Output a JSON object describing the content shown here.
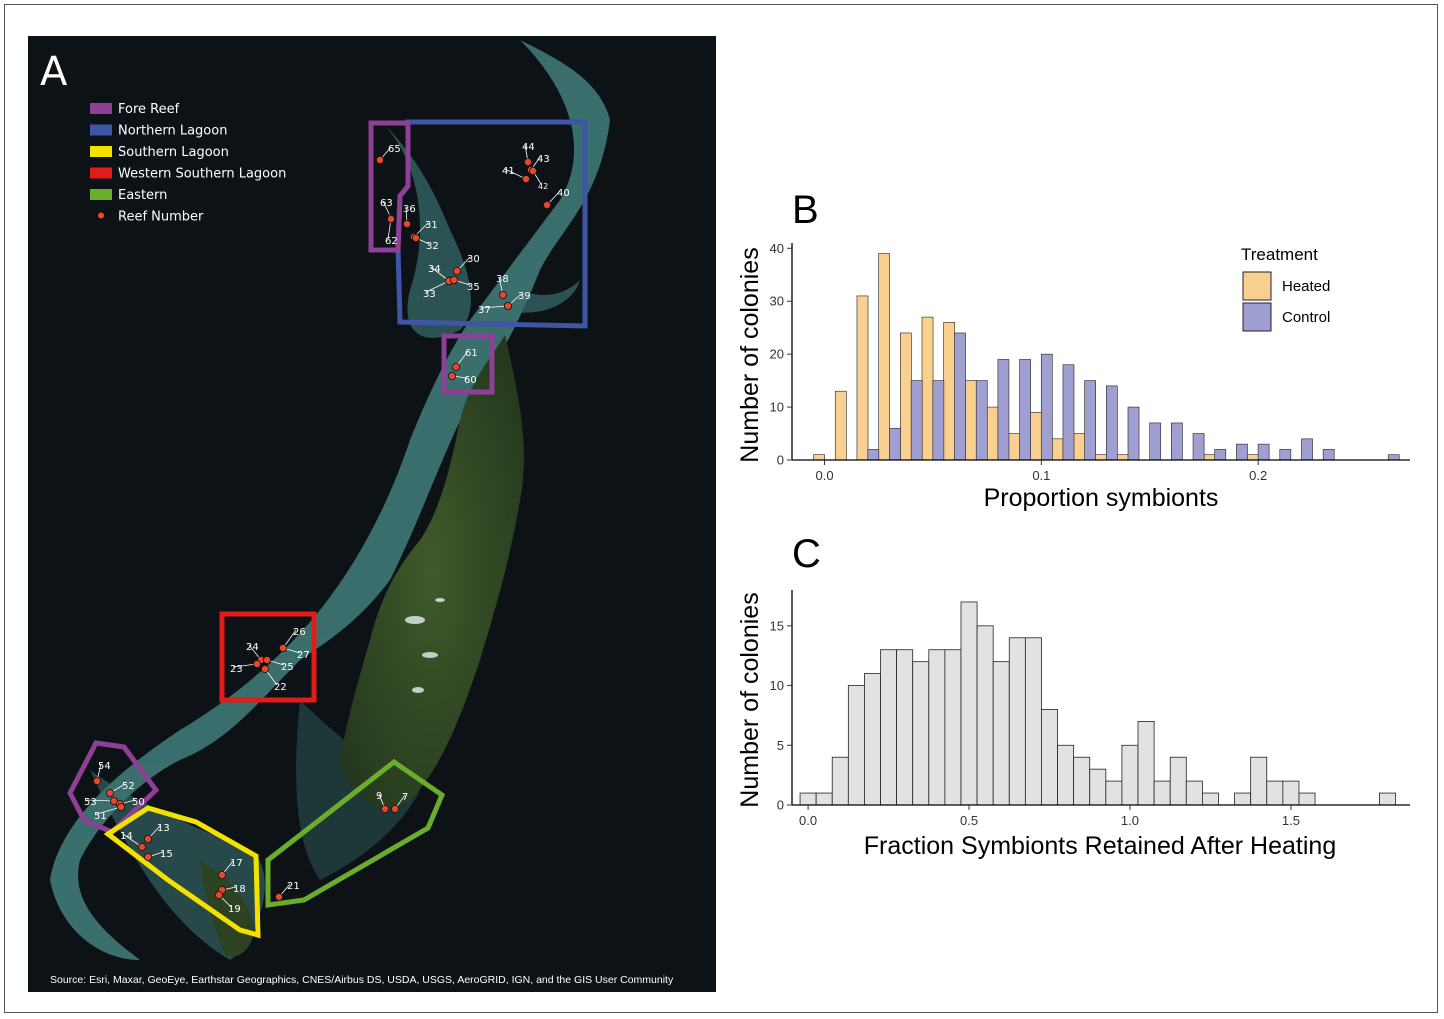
{
  "panel_a": {
    "letter": "A",
    "legend": [
      {
        "label": "Fore Reef",
        "color": "#8e3f96"
      },
      {
        "label": "Northern Lagoon",
        "color": "#3f55a5"
      },
      {
        "label": "Southern Lagoon",
        "color": "#f3e100"
      },
      {
        "label": "Western Southern Lagoon",
        "color": "#e21b1b"
      },
      {
        "label": "Eastern",
        "color": "#6aad2c"
      },
      {
        "label": "Reef Number",
        "color": "#e8472b"
      }
    ],
    "reefs": [
      {
        "label": "65"
      },
      {
        "label": "63"
      },
      {
        "label": "62"
      },
      {
        "label": "36"
      },
      {
        "label": "31"
      },
      {
        "label": "32"
      },
      {
        "label": "44"
      },
      {
        "label": "43"
      },
      {
        "label": "41"
      },
      {
        "label": "42"
      },
      {
        "label": "40"
      },
      {
        "label": "30"
      },
      {
        "label": "34"
      },
      {
        "label": "33"
      },
      {
        "label": "35"
      },
      {
        "label": "38"
      },
      {
        "label": "37"
      },
      {
        "label": "39"
      },
      {
        "label": "61"
      },
      {
        "label": "60"
      },
      {
        "label": "26"
      },
      {
        "label": "27"
      },
      {
        "label": "24"
      },
      {
        "label": "23"
      },
      {
        "label": "25"
      },
      {
        "label": "22"
      },
      {
        "label": "54"
      },
      {
        "label": "52"
      },
      {
        "label": "53"
      },
      {
        "label": "50"
      },
      {
        "label": "51"
      },
      {
        "label": "13"
      },
      {
        "label": "14"
      },
      {
        "label": "15"
      },
      {
        "label": "17"
      },
      {
        "label": "18"
      },
      {
        "label": "19"
      },
      {
        "label": "21"
      },
      {
        "label": "9"
      },
      {
        "label": "7"
      }
    ],
    "source": "Source: Esri, Maxar, GeoEye, Earthstar Geographics, CNES/Airbus DS, USDA, USGS, AeroGRID, IGN, and the GIS User Community"
  },
  "panel_b": {
    "letter": "B",
    "legend_title": "Treatment",
    "colors": {
      "Heated": "#f9d08f",
      "Control": "#9f9fd1"
    }
  },
  "panel_c": {
    "letter": "C",
    "color": "#e2e2e2"
  },
  "chart_data": [
    {
      "type": "bar",
      "xlabel": "Proportion symbionts",
      "ylabel": "Number of colonies",
      "xlim": [
        -0.015,
        0.27
      ],
      "ylim": [
        0,
        41
      ],
      "xticks": [
        "0.0",
        "0.1",
        "0.2"
      ],
      "yticks": [
        "0",
        "10",
        "20",
        "30",
        "40"
      ],
      "legend_position": "top-right",
      "grid": false,
      "bin_width": 0.01,
      "series": [
        {
          "name": "Heated",
          "x": [
            -0.0025,
            0.0075,
            0.0175,
            0.0275,
            0.0375,
            0.0475,
            0.0575,
            0.0675,
            0.0775,
            0.0875,
            0.0975,
            0.1075,
            0.1175,
            0.1275,
            0.1375,
            0.1475,
            0.1575,
            0.1675,
            0.1775,
            0.1875,
            0.1975,
            0.2075,
            0.2175,
            0.2275,
            0.2375,
            0.2475,
            0.2575
          ],
          "values": [
            1,
            13,
            31,
            39,
            24,
            27,
            26,
            15,
            10,
            5,
            9,
            4,
            5,
            1,
            1,
            0,
            0,
            0,
            1,
            0,
            1,
            0,
            0,
            0,
            0,
            0,
            0
          ]
        },
        {
          "name": "Control",
          "x": [
            0.0025,
            0.0125,
            0.0225,
            0.0325,
            0.0425,
            0.0525,
            0.0625,
            0.0725,
            0.0825,
            0.0925,
            0.1025,
            0.1125,
            0.1225,
            0.1325,
            0.1425,
            0.1525,
            0.1625,
            0.1725,
            0.1825,
            0.1925,
            0.2025,
            0.2125,
            0.2225,
            0.2325,
            0.2425,
            0.2525,
            0.2625
          ],
          "values": [
            0,
            0,
            2,
            6,
            15,
            15,
            24,
            15,
            19,
            19,
            20,
            18,
            15,
            14,
            10,
            7,
            7,
            5,
            2,
            3,
            3,
            2,
            4,
            2,
            0,
            0,
            1
          ]
        }
      ]
    },
    {
      "type": "bar",
      "xlabel": "Fraction Symbionts Retained After Heating",
      "ylabel": "Number of colonies",
      "xlim": [
        -0.05,
        1.87
      ],
      "ylim": [
        0,
        18
      ],
      "xticks": [
        "0.0",
        "0.5",
        "1.0",
        "1.5"
      ],
      "yticks": [
        "0",
        "5",
        "10",
        "15"
      ],
      "grid": false,
      "bin_width": 0.05,
      "x": [
        0,
        0.05,
        0.1,
        0.15,
        0.2,
        0.25,
        0.3,
        0.35,
        0.4,
        0.45,
        0.5,
        0.55,
        0.6,
        0.65,
        0.7,
        0.75,
        0.8,
        0.85,
        0.9,
        0.95,
        1.0,
        1.05,
        1.1,
        1.15,
        1.2,
        1.25,
        1.3,
        1.35,
        1.4,
        1.45,
        1.5,
        1.55,
        1.6,
        1.65,
        1.7,
        1.75,
        1.8
      ],
      "values": [
        1,
        1,
        4,
        10,
        11,
        13,
        13,
        12,
        13,
        13,
        17,
        15,
        12,
        14,
        14,
        8,
        5,
        4,
        3,
        2,
        5,
        7,
        2,
        4,
        2,
        1,
        0,
        1,
        4,
        2,
        2,
        1,
        0,
        0,
        0,
        0,
        1
      ]
    }
  ]
}
